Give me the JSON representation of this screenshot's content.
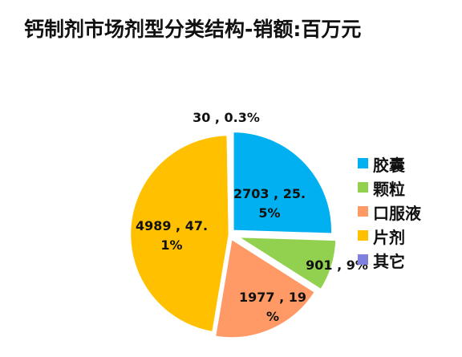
{
  "chart_data": {
    "type": "pie",
    "title": "钙制剂市场剂型分类结构-销额:百万元",
    "slices": [
      {
        "name": "胶囊",
        "value": 2703,
        "percent": "25.5%",
        "label_lines": [
          "2703 , 25.",
          "5%"
        ],
        "color": "#00B0F0"
      },
      {
        "name": "颗粒",
        "value": 901,
        "percent": "9%",
        "label_lines": [
          "901 , 9%"
        ],
        "color": "#92D050"
      },
      {
        "name": "口服液",
        "value": 1977,
        "percent": "19%",
        "label_lines": [
          "1977 , 19",
          "%"
        ],
        "color": "#FF9966"
      },
      {
        "name": "片剂",
        "value": 4989,
        "percent": "47.1%",
        "label_lines": [
          "4989 , 47.",
          "1%"
        ],
        "color": "#FFC000"
      },
      {
        "name": "其它",
        "value": 30,
        "percent": "0.3%",
        "label_lines": [
          "30 , 0.3%"
        ],
        "color": "#7F7FDF"
      }
    ],
    "legend_position": "right"
  }
}
